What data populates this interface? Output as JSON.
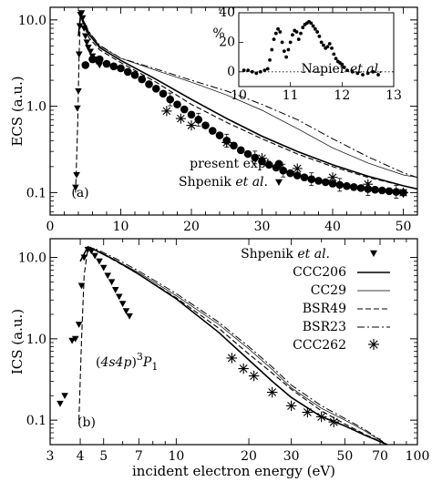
{
  "chart_data": [
    {
      "type": "line",
      "panel_label": "(a)",
      "ylabel": "ECS (a.u.)",
      "xlim": [
        0,
        52
      ],
      "ylim": [
        0.055,
        14
      ],
      "yscale": "log",
      "xticks": [
        0,
        10,
        20,
        30,
        40,
        50
      ],
      "xtick_labels": [
        "0",
        "10",
        "20",
        "30",
        "40",
        "50"
      ],
      "yticks": [
        0.1,
        1.0,
        10.0
      ],
      "ytick_labels": [
        "0.1",
        "1.0",
        "10.0"
      ],
      "legend": [
        "present expt.",
        "Shpenik et al."
      ],
      "series": [
        {
          "name": "present expt.",
          "marker": "circle",
          "x": [
            5,
            6,
            7,
            8,
            9,
            10,
            11,
            12,
            13,
            14,
            15,
            16,
            17,
            18,
            19,
            20,
            21,
            22,
            23,
            24,
            25,
            26,
            27,
            28,
            29,
            30,
            31,
            32,
            33,
            34,
            35,
            36,
            37,
            38,
            39,
            40,
            41,
            42,
            43,
            44,
            45,
            46,
            47,
            48,
            49,
            50
          ],
          "y": [
            3.0,
            3.5,
            3.5,
            3.1,
            2.9,
            2.75,
            2.5,
            2.3,
            2.05,
            1.8,
            1.6,
            1.4,
            1.2,
            1.05,
            0.92,
            0.8,
            0.7,
            0.6,
            0.52,
            0.46,
            0.4,
            0.35,
            0.31,
            0.28,
            0.255,
            0.23,
            0.21,
            0.195,
            0.18,
            0.168,
            0.158,
            0.15,
            0.143,
            0.137,
            0.132,
            0.127,
            0.123,
            0.119,
            0.116,
            0.113,
            0.11,
            0.108,
            0.106,
            0.104,
            0.102,
            0.1
          ]
        },
        {
          "name": "Shpenik et al.",
          "marker": "triangle-down",
          "x": [
            3.6,
            3.75,
            3.85,
            4.0,
            4.1,
            4.2,
            4.3,
            4.45,
            4.6,
            4.8,
            5.0,
            5.2,
            5.4,
            5.7,
            6.0,
            6.3,
            6.6,
            7.0
          ],
          "y": [
            0.115,
            0.16,
            0.95,
            1.5,
            4.0,
            8.5,
            11.5,
            12.0,
            10.5,
            8.0,
            6.5,
            5.5,
            4.8,
            4.3,
            3.8,
            3.5,
            3.3,
            3.0
          ]
        },
        {
          "name": "",
          "marker": "asterisk",
          "x": [
            16.5,
            18.5,
            20,
            25,
            30,
            35,
            40,
            45,
            50
          ],
          "y": [
            0.88,
            0.72,
            0.6,
            0.38,
            0.25,
            0.19,
            0.15,
            0.125,
            0.1
          ]
        },
        {
          "name": "",
          "line": "solid",
          "x": [
            4,
            4.3,
            4.7,
            5.5,
            7,
            10,
            15,
            20,
            25,
            30,
            35,
            40,
            45,
            50,
            52
          ],
          "y": [
            6.5,
            11,
            9.5,
            6.8,
            4.8,
            3.4,
            2.05,
            1.2,
            0.72,
            0.45,
            0.3,
            0.21,
            0.155,
            0.12,
            0.11
          ]
        },
        {
          "name": "",
          "line": "thin",
          "x": [
            4,
            4.3,
            4.7,
            5.5,
            7,
            10,
            15,
            20,
            25,
            30,
            35,
            40,
            45,
            50,
            52
          ],
          "y": [
            6.8,
            11.5,
            10,
            7.2,
            5.0,
            3.6,
            2.6,
            1.9,
            1.35,
            0.9,
            0.55,
            0.33,
            0.22,
            0.16,
            0.15
          ]
        },
        {
          "name": "",
          "line": "dashed",
          "x": [
            3.6,
            3.9,
            4.1,
            4.3,
            4.6,
            5.5,
            7,
            10,
            15,
            20,
            25,
            30,
            35,
            40,
            45,
            50,
            52
          ],
          "y": [
            0.1,
            0.6,
            4,
            11,
            9.5,
            6.2,
            4.5,
            3.2,
            1.9,
            1.05,
            0.65,
            0.42,
            0.28,
            0.2,
            0.15,
            0.12,
            0.11
          ]
        },
        {
          "name": "",
          "line": "dash-dot",
          "x": [
            4,
            4.3,
            4.7,
            5.5,
            7,
            10,
            15,
            20,
            25,
            30,
            35,
            40,
            45,
            50,
            52
          ],
          "y": [
            6.8,
            11.5,
            10,
            7.3,
            5.1,
            3.6,
            2.7,
            2.0,
            1.5,
            1.05,
            0.7,
            0.42,
            0.26,
            0.17,
            0.15
          ]
        }
      ],
      "inset": {
        "xlim": [
          10,
          13
        ],
        "ylim": [
          -10,
          40
        ],
        "xticks": [
          10,
          11,
          12,
          13
        ],
        "xtick_labels": [
          "10",
          "11",
          "12",
          "13"
        ],
        "yticks": [
          0,
          20,
          40
        ],
        "ytick_labels": [
          "0",
          "20",
          "40"
        ],
        "ylabel": "%",
        "annotation": "Napier et al.",
        "x": [
          10.1,
          10.18,
          10.26,
          10.34,
          10.42,
          10.5,
          10.56,
          10.6,
          10.64,
          10.68,
          10.72,
          10.76,
          10.8,
          10.84,
          10.88,
          10.92,
          10.96,
          11.0,
          11.04,
          11.08,
          11.12,
          11.16,
          11.2,
          11.24,
          11.28,
          11.32,
          11.36,
          11.4,
          11.44,
          11.48,
          11.52,
          11.56,
          11.6,
          11.64,
          11.68,
          11.72,
          11.76,
          11.8,
          11.84,
          11.88,
          11.92,
          11.96,
          12.0,
          12.04,
          12.1,
          12.2,
          12.3,
          12.4,
          12.5,
          12.6,
          12.7
        ],
        "y": [
          1,
          1,
          0,
          -1,
          0,
          1,
          2,
          8,
          15,
          22,
          26,
          29,
          27,
          20,
          14,
          10,
          15,
          20,
          25,
          28,
          27,
          22,
          26,
          30,
          32,
          33,
          34,
          33,
          31,
          29,
          27,
          24,
          20,
          18,
          16,
          17,
          19,
          16,
          12,
          9,
          7,
          6,
          5,
          3,
          1,
          0,
          -1,
          -2,
          -1,
          0,
          -2
        ]
      }
    },
    {
      "type": "line",
      "panel_label": "(b)",
      "annotation": "(4s4p)³P₁",
      "xlabel": "incident electron energy (eV)",
      "ylabel": "ICS (a.u.)",
      "xscale": "log",
      "yscale": "log",
      "xlim": [
        3,
        100
      ],
      "ylim": [
        0.05,
        17
      ],
      "xticks": [
        3,
        4,
        5,
        7,
        10,
        20,
        30,
        50,
        70,
        100
      ],
      "xtick_labels": [
        "3",
        "4",
        "5",
        "7",
        "10",
        "20",
        "30",
        "50",
        "70",
        "100"
      ],
      "yticks": [
        0.1,
        1.0,
        10.0
      ],
      "ytick_labels": [
        "0.1",
        "1.0",
        "10.0"
      ],
      "legend": [
        "Shpenik et al.",
        "CCC206",
        "CC29",
        "BSR49",
        "BSR23",
        "CCC262"
      ],
      "series": [
        {
          "name": "Shpenik et al.",
          "marker": "triangle-down",
          "x": [
            3.3,
            3.45,
            3.7,
            3.82,
            3.95,
            4.05,
            4.15,
            4.3,
            4.45,
            4.6,
            4.8,
            5.0,
            5.2,
            5.4,
            5.6,
            5.8,
            6.0,
            6.2,
            6.4
          ],
          "y": [
            0.16,
            0.2,
            0.95,
            1.0,
            1.5,
            4.5,
            10,
            12.5,
            12,
            10.5,
            9,
            7.5,
            6,
            5,
            4,
            3.3,
            2.7,
            2.2,
            1.9
          ]
        },
        {
          "name": "CCC206",
          "line": "solid",
          "x": [
            4,
            4.3,
            4.7,
            5.5,
            7,
            10,
            15,
            20,
            25,
            30,
            40,
            50,
            60,
            75
          ],
          "y": [
            9,
            13.5,
            12,
            9.5,
            6.2,
            3.1,
            1.2,
            0.55,
            0.3,
            0.19,
            0.11,
            0.085,
            0.066,
            0.05
          ]
        },
        {
          "name": "CC29",
          "line": "thin",
          "x": [
            4,
            4.3,
            4.7,
            5.5,
            7,
            10,
            15,
            20,
            25,
            30,
            40,
            50,
            60,
            75
          ],
          "y": [
            9,
            13.5,
            12,
            9.5,
            6.5,
            3.4,
            1.5,
            0.75,
            0.42,
            0.25,
            0.14,
            0.1,
            0.075,
            0.05
          ]
        },
        {
          "name": "BSR49",
          "line": "dashed",
          "x": [
            3.95,
            4.05,
            4.15,
            4.3,
            4.7,
            5.5,
            7,
            10,
            15,
            20,
            25,
            30,
            40,
            50,
            60,
            75
          ],
          "y": [
            0.1,
            1.0,
            6,
            13,
            12,
            9.3,
            6.2,
            3.2,
            1.35,
            0.65,
            0.38,
            0.24,
            0.13,
            0.09,
            0.068,
            0.05
          ]
        },
        {
          "name": "BSR23",
          "line": "dash-dot",
          "x": [
            4,
            4.3,
            4.7,
            5.5,
            7,
            10,
            15,
            20,
            25,
            30,
            40,
            50,
            60,
            75
          ],
          "y": [
            9,
            13.5,
            12.5,
            10,
            6.8,
            3.6,
            1.6,
            0.8,
            0.45,
            0.27,
            0.15,
            0.105,
            0.078,
            0.05
          ]
        },
        {
          "name": "CCC262",
          "marker": "asterisk",
          "x": [
            17,
            19,
            21,
            25,
            30,
            35,
            40,
            45
          ],
          "y": [
            0.58,
            0.43,
            0.35,
            0.22,
            0.15,
            0.125,
            0.11,
            0.095
          ]
        }
      ]
    }
  ]
}
